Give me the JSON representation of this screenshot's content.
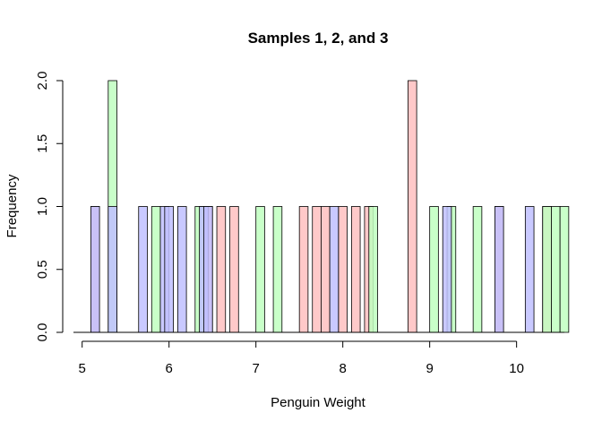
{
  "chart_data": {
    "type": "bar",
    "title": "Samples 1, 2, and 3",
    "xlabel": "Penguin Weight",
    "ylabel": "Frequency",
    "xlim": [
      4.9,
      10.55
    ],
    "ylim": [
      0,
      2
    ],
    "x_ticks": [
      "5",
      "6",
      "7",
      "8",
      "9",
      "10"
    ],
    "y_ticks": [
      "0.0",
      "0.5",
      "1.0",
      "1.5",
      "2.0"
    ],
    "bin_width": 0.1,
    "grid": false,
    "legend": "none",
    "series": [
      {
        "color": "#ffc0c0",
        "bins": [
          {
            "x": 5.15,
            "y": 1
          },
          {
            "x": 6.45,
            "y": 1
          },
          {
            "x": 6.6,
            "y": 1
          },
          {
            "x": 6.75,
            "y": 1
          },
          {
            "x": 7.55,
            "y": 1
          },
          {
            "x": 7.7,
            "y": 1
          },
          {
            "x": 7.8,
            "y": 1
          },
          {
            "x": 8.0,
            "y": 1
          },
          {
            "x": 8.15,
            "y": 1
          },
          {
            "x": 8.3,
            "y": 1
          },
          {
            "x": 8.8,
            "y": 2
          },
          {
            "x": 9.8,
            "y": 1
          },
          {
            "x": 10.35,
            "y": 1
          }
        ]
      },
      {
        "color": "#c0ffc0",
        "bins": [
          {
            "x": 5.35,
            "y": 2
          },
          {
            "x": 5.85,
            "y": 1
          },
          {
            "x": 6.35,
            "y": 1
          },
          {
            "x": 7.05,
            "y": 1
          },
          {
            "x": 7.25,
            "y": 1
          },
          {
            "x": 8.35,
            "y": 1
          },
          {
            "x": 9.05,
            "y": 1
          },
          {
            "x": 9.25,
            "y": 1
          },
          {
            "x": 9.55,
            "y": 1
          },
          {
            "x": 10.35,
            "y": 1
          },
          {
            "x": 10.45,
            "y": 1
          },
          {
            "x": 10.55,
            "y": 1
          }
        ]
      },
      {
        "color": "#c0c0ff",
        "bins": [
          {
            "x": 5.15,
            "y": 1
          },
          {
            "x": 5.35,
            "y": 1
          },
          {
            "x": 5.7,
            "y": 1
          },
          {
            "x": 5.95,
            "y": 1
          },
          {
            "x": 6.0,
            "y": 1
          },
          {
            "x": 6.15,
            "y": 1
          },
          {
            "x": 6.4,
            "y": 1
          },
          {
            "x": 6.45,
            "y": 1
          },
          {
            "x": 7.9,
            "y": 1
          },
          {
            "x": 9.2,
            "y": 1
          },
          {
            "x": 9.8,
            "y": 1
          },
          {
            "x": 10.15,
            "y": 1
          }
        ]
      }
    ]
  }
}
